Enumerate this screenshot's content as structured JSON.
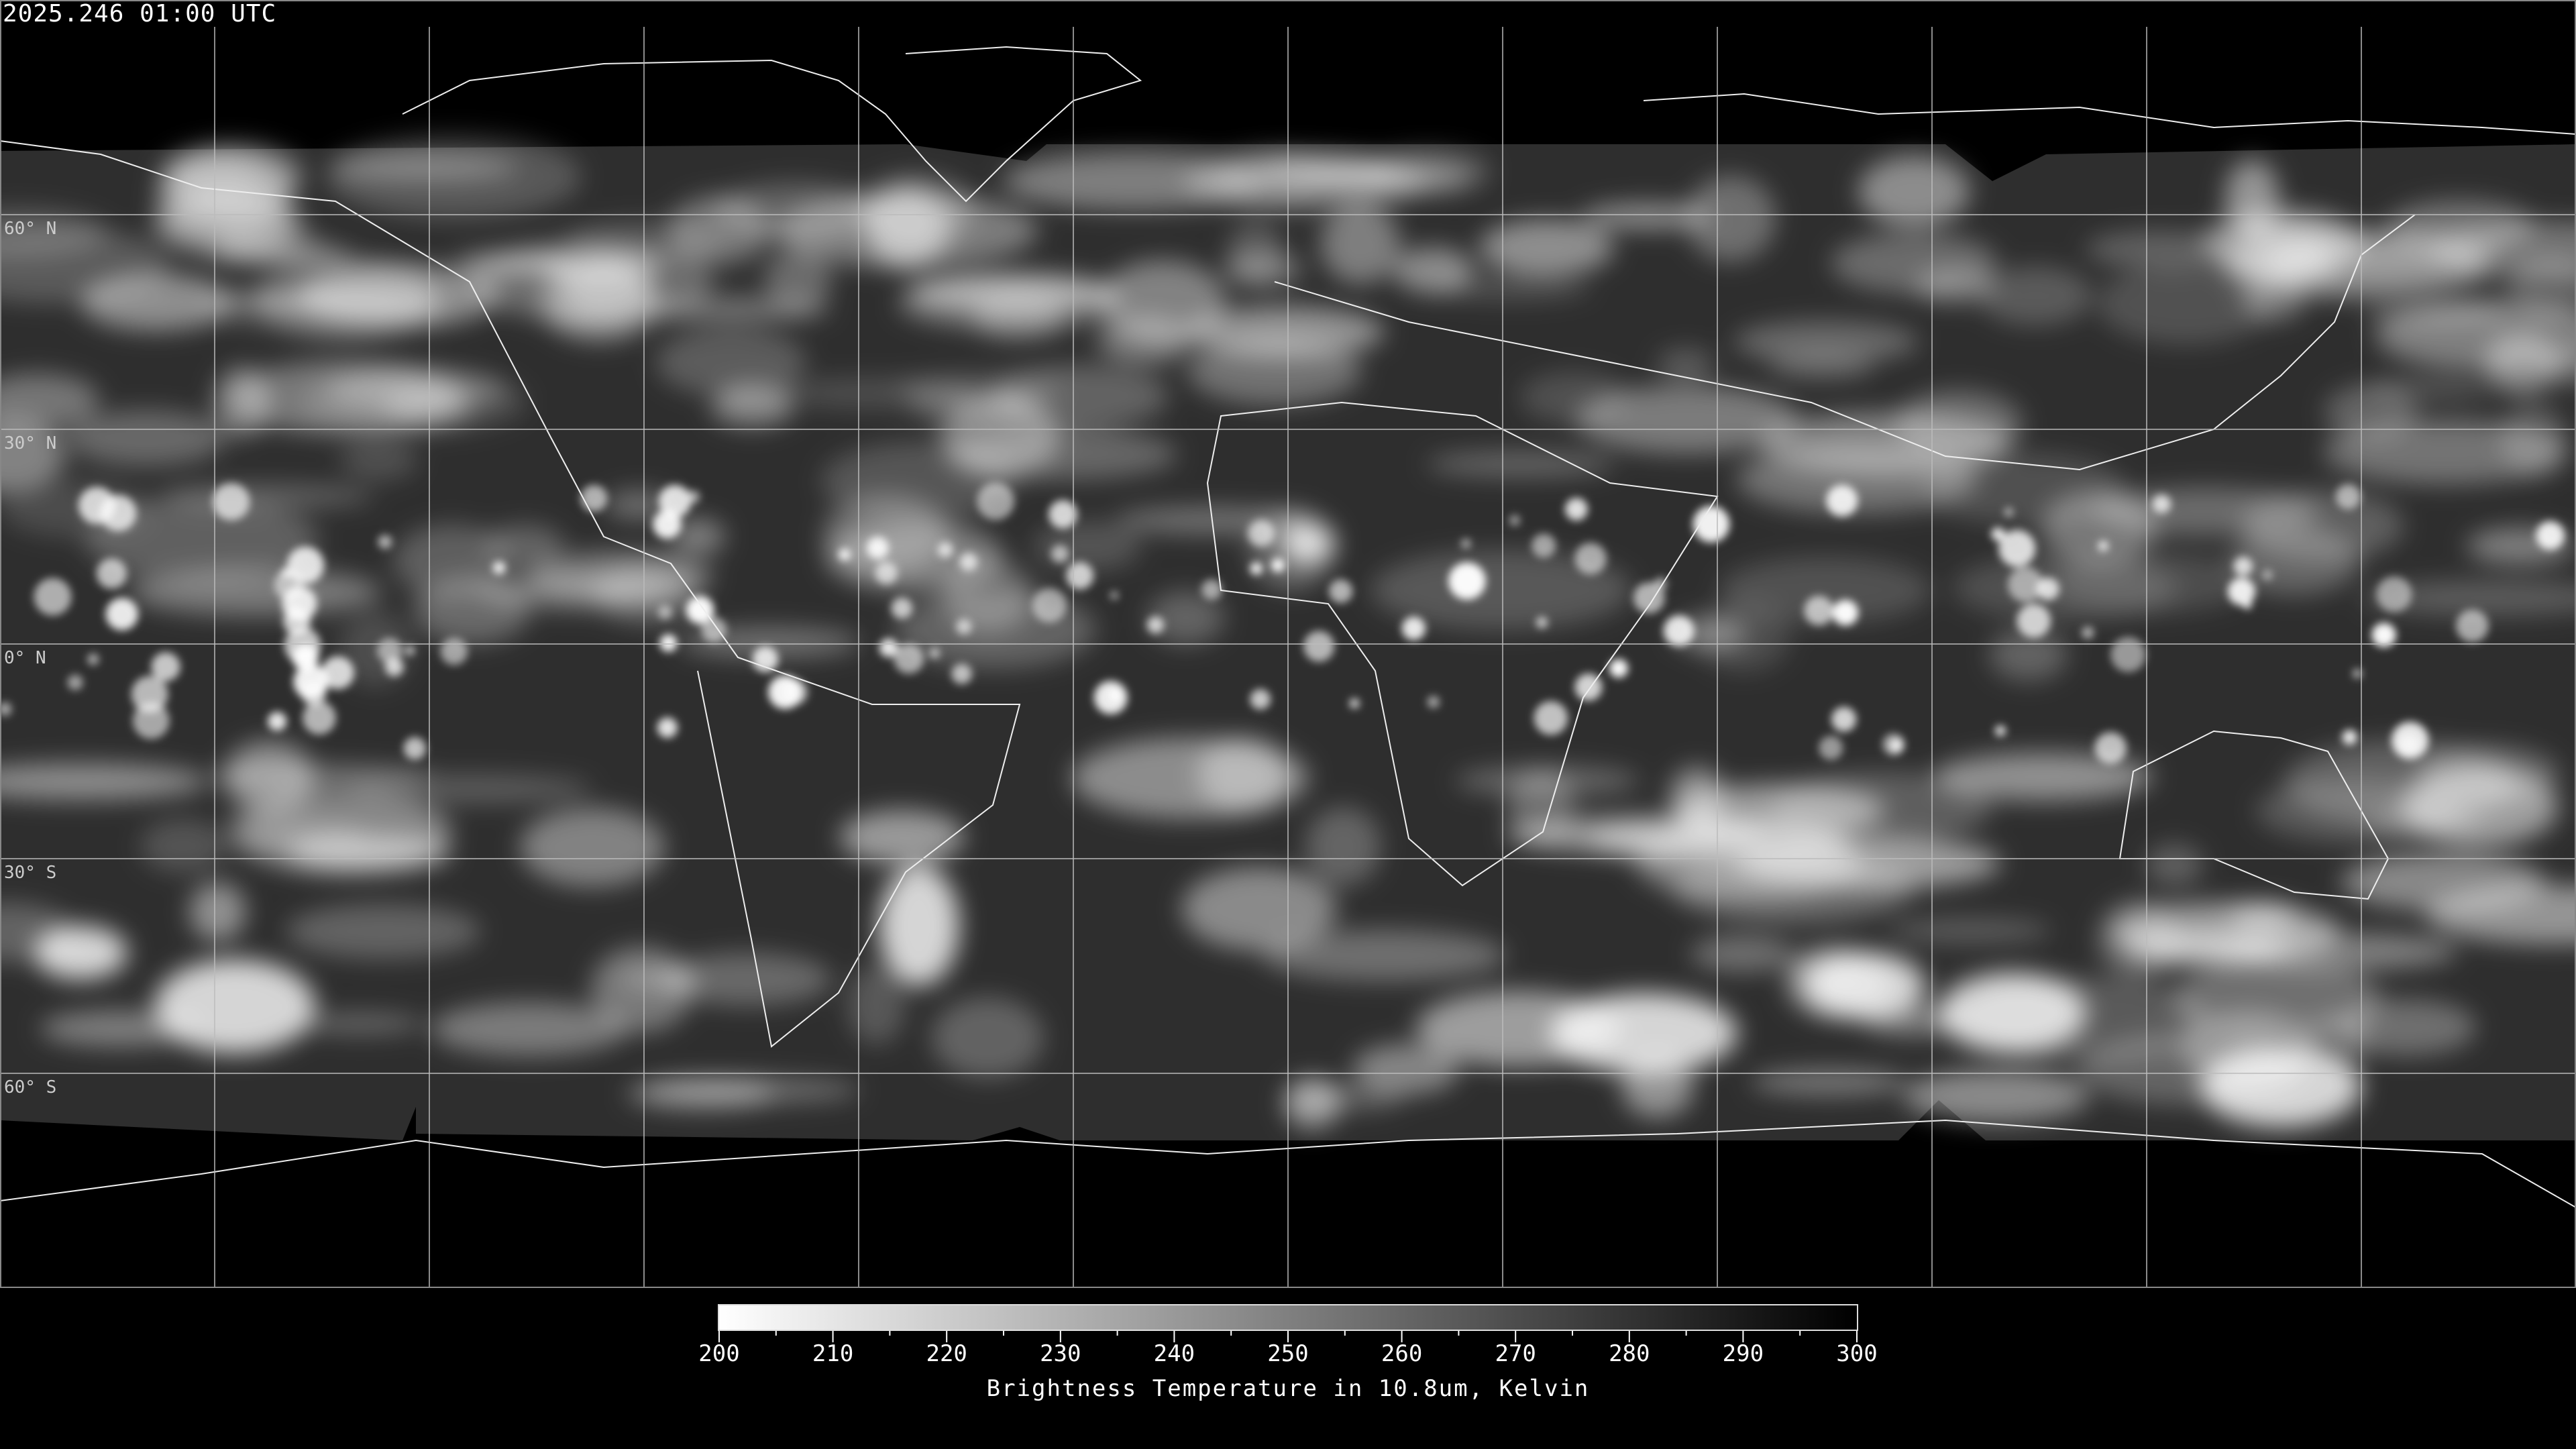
{
  "title": "2025.246 01:00 UTC",
  "map": {
    "projection": "equirectangular",
    "graticule_spacing_deg": 30,
    "lat_labels": [
      "60° N",
      "30° N",
      "0° N",
      "30° S",
      "60° S"
    ],
    "lat_values": [
      60,
      30,
      0,
      -30,
      -60
    ]
  },
  "colorbar": {
    "min": 200,
    "max": 300,
    "ticks": [
      "200",
      "210",
      "220",
      "230",
      "240",
      "250",
      "260",
      "270",
      "280",
      "290",
      "300"
    ],
    "minor_step": 5,
    "color_low": "#ffffff",
    "color_high": "#000000",
    "label": "Brightness Temperature in 10.8um, Kelvin"
  }
}
